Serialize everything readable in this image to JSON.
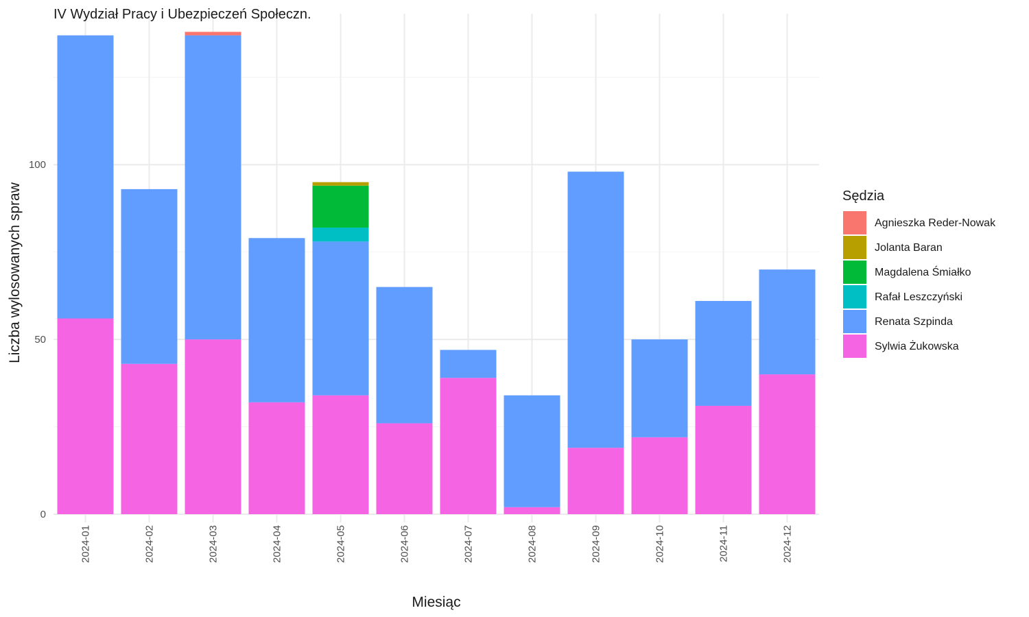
{
  "chart_data": {
    "type": "bar",
    "stacked": true,
    "title": "IV Wydział Pracy i Ubezpieczeń Społeczn.",
    "xlabel": "Miesiąc",
    "ylabel": "Liczba wylosowanych spraw",
    "ylim": [
      0,
      138
    ],
    "yticks": [
      0,
      50,
      100
    ],
    "grid": true,
    "legend_title": "Sędzia",
    "legend_position": "right",
    "categories": [
      "2024-01",
      "2024-02",
      "2024-03",
      "2024-04",
      "2024-05",
      "2024-06",
      "2024-07",
      "2024-08",
      "2024-09",
      "2024-10",
      "2024-11",
      "2024-12"
    ],
    "series": [
      {
        "name": "Sylwia Żukowska",
        "color": "#F564E3",
        "values": [
          56,
          43,
          50,
          32,
          34,
          26,
          39,
          2,
          19,
          22,
          31,
          40
        ]
      },
      {
        "name": "Renata Szpinda",
        "color": "#619CFF",
        "values": [
          81,
          50,
          87,
          47,
          44,
          39,
          8,
          32,
          79,
          28,
          30,
          30
        ]
      },
      {
        "name": "Rafał Leszczyński",
        "color": "#00BFC4",
        "values": [
          0,
          0,
          0,
          0,
          4,
          0,
          0,
          0,
          0,
          0,
          0,
          0
        ]
      },
      {
        "name": "Magdalena Śmiałko",
        "color": "#00BA38",
        "values": [
          0,
          0,
          0,
          0,
          12,
          0,
          0,
          0,
          0,
          0,
          0,
          0
        ]
      },
      {
        "name": "Jolanta Baran",
        "color": "#B79F00",
        "values": [
          0,
          0,
          0,
          0,
          1,
          0,
          0,
          0,
          0,
          0,
          0,
          0
        ]
      },
      {
        "name": "Agnieszka Reder-Nowak",
        "color": "#F8766D",
        "values": [
          0,
          0,
          1,
          0,
          0,
          0,
          0,
          0,
          0,
          0,
          0,
          0
        ]
      }
    ],
    "legend_order": [
      "Agnieszka Reder-Nowak",
      "Jolanta Baran",
      "Magdalena Śmiałko",
      "Rafał Leszczyński",
      "Renata Szpinda",
      "Sylwia Żukowska"
    ]
  }
}
